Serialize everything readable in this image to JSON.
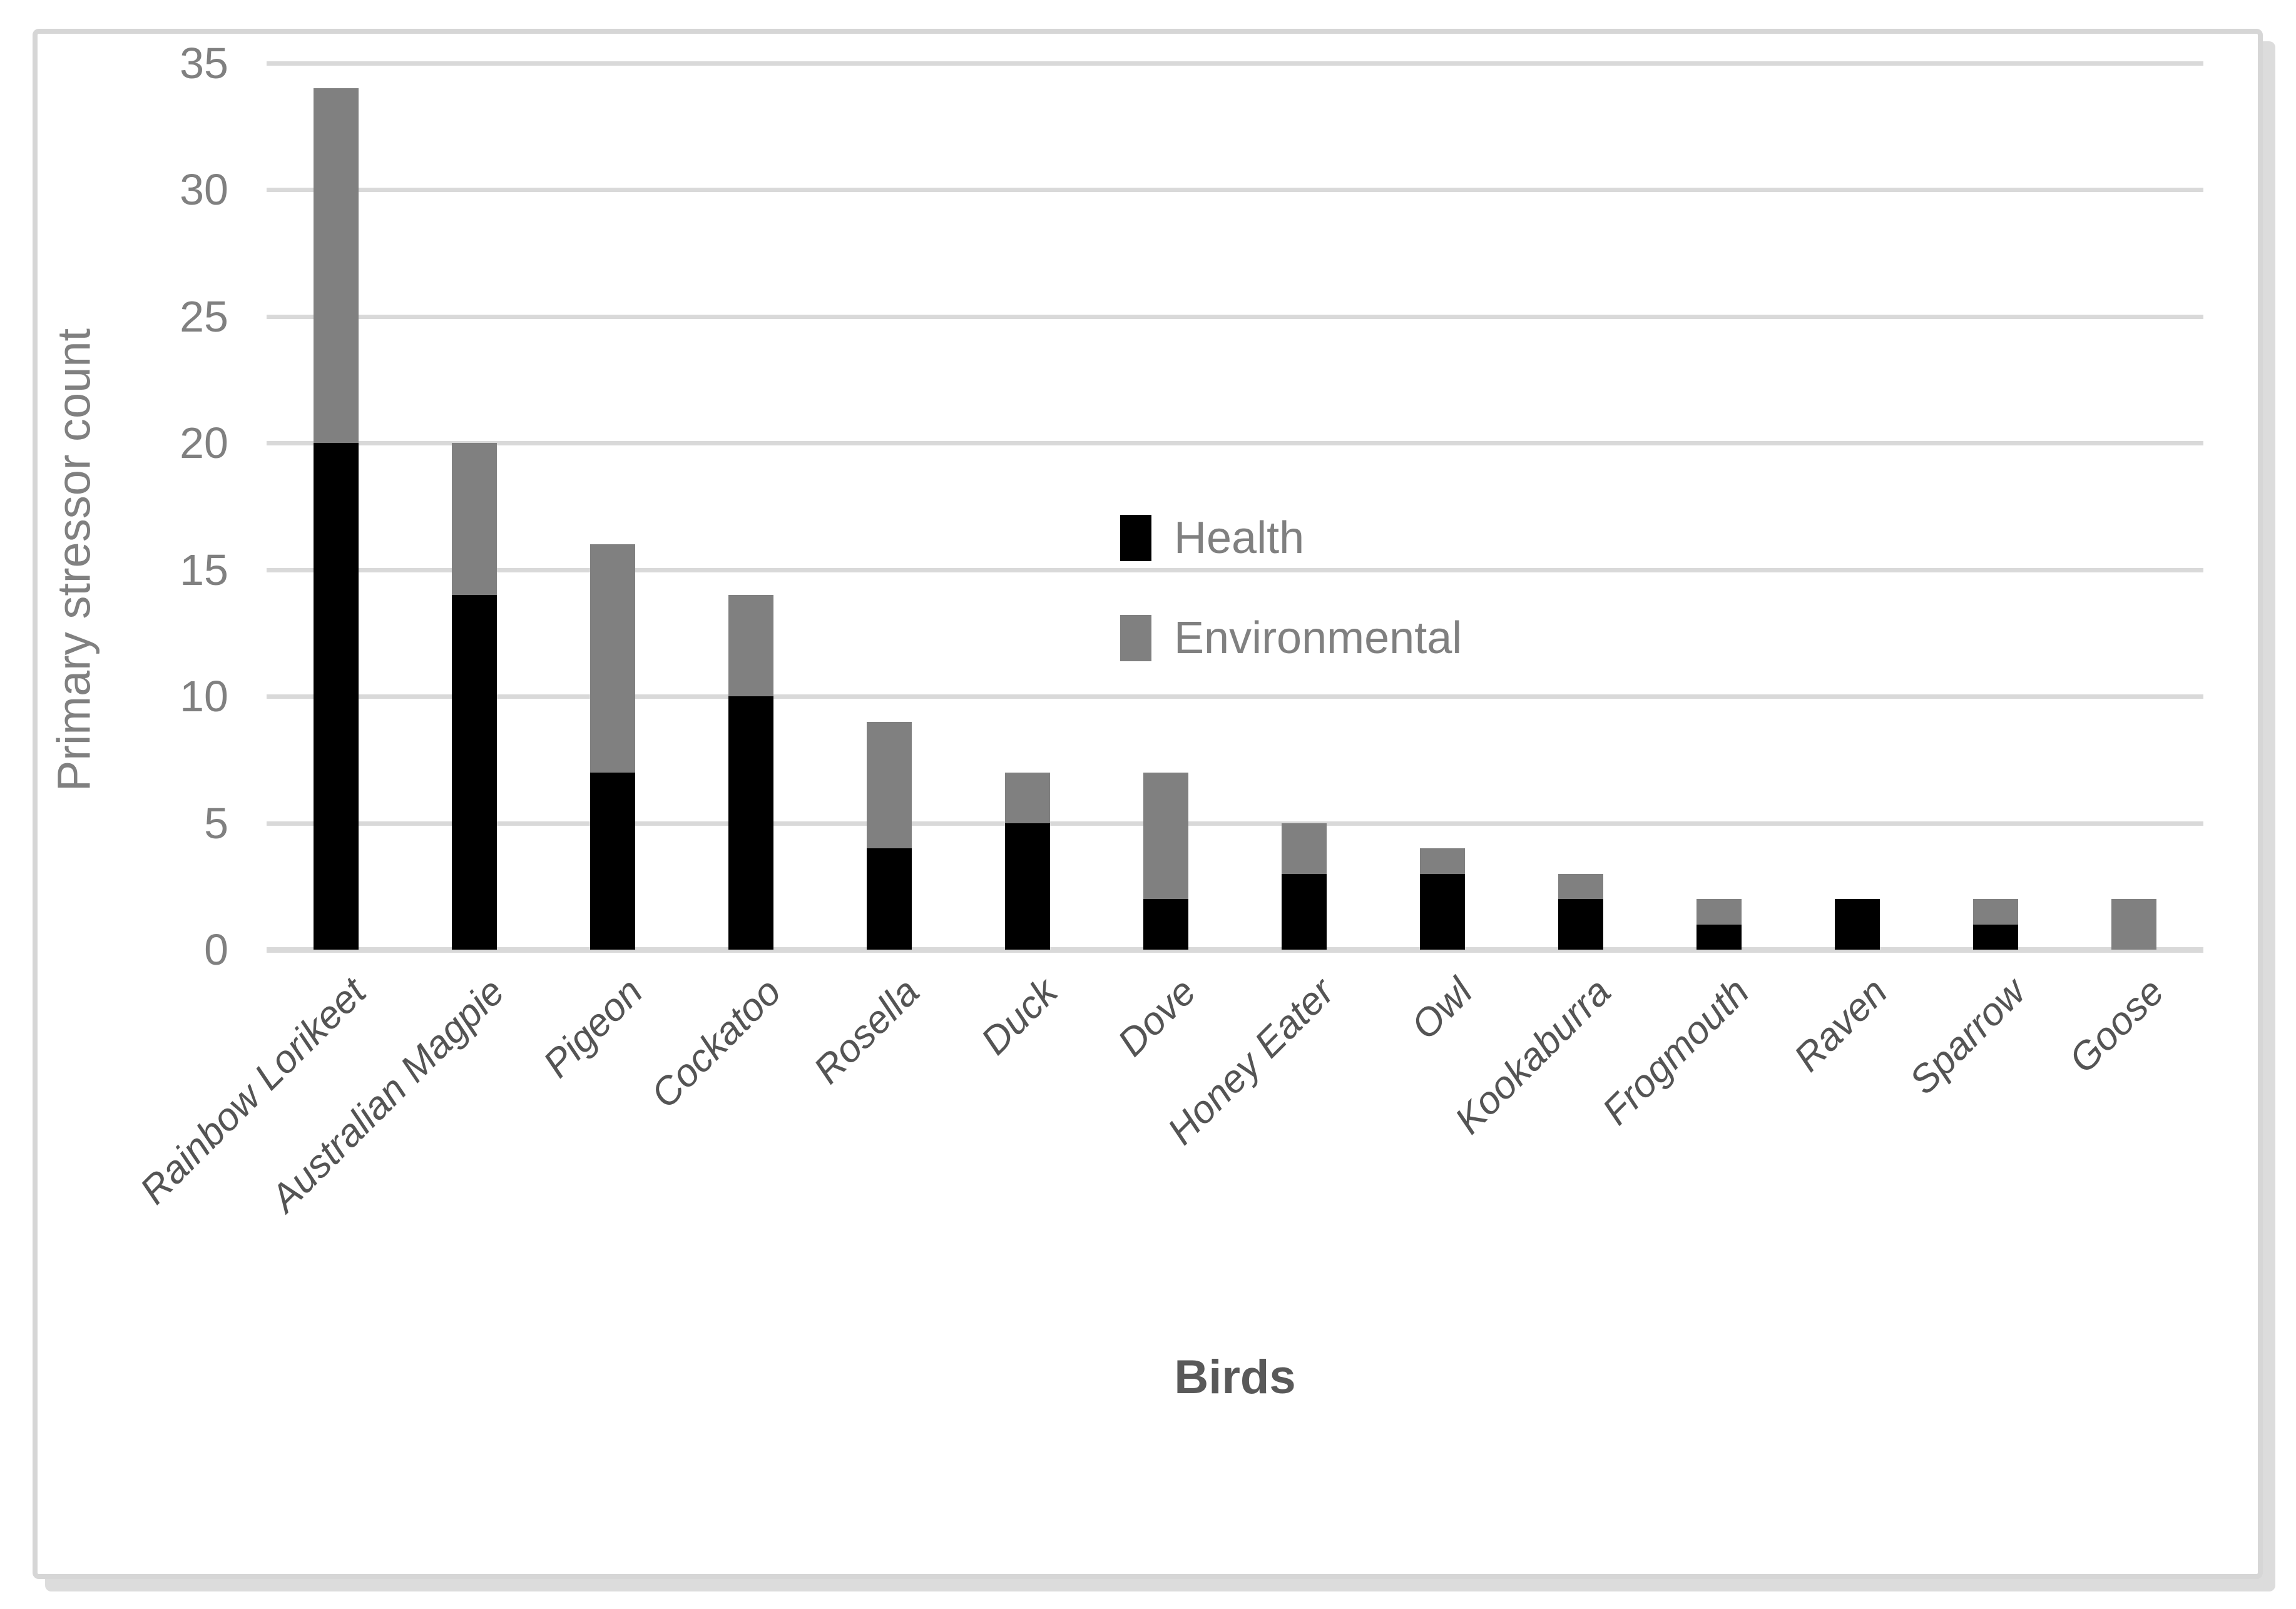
{
  "chart_data": {
    "type": "bar",
    "stacked": true,
    "categories": [
      "Rainbow Lorikeet",
      "Australian Magpie",
      "Pigeon",
      "Cockatoo",
      "Rosella",
      "Duck",
      "Dove",
      "Honey Eater",
      "Owl",
      "Kookaburra",
      "Frogmouth",
      "Raven",
      "Sparrow",
      "Goose"
    ],
    "series": [
      {
        "name": "Health",
        "color": "#000000",
        "values": [
          20,
          14,
          7,
          10,
          4,
          5,
          2,
          3,
          3,
          2,
          1,
          2,
          1,
          0
        ]
      },
      {
        "name": "Environmental",
        "color": "#808080",
        "values": [
          14,
          6,
          9,
          4,
          5,
          2,
          5,
          2,
          1,
          1,
          1,
          0,
          1,
          2
        ]
      }
    ],
    "totals": [
      34,
      20,
      16,
      14,
      9,
      7,
      7,
      5,
      4,
      3,
      2,
      2,
      2,
      2
    ],
    "xlabel": "Birds",
    "ylabel": "Primary stressor count",
    "ylim": [
      0,
      35
    ],
    "yticks": [
      0,
      5,
      10,
      15,
      20,
      25,
      30,
      35
    ],
    "grid": "horizontal",
    "legend_position": "inside-center-right",
    "legend_entries": [
      "Health",
      "Environmental"
    ]
  },
  "colors": {
    "background": "#ffffff",
    "gridline": "#d9d9d9",
    "frame_border": "#d6d6d6",
    "frame_shadow": "#dcdcdc",
    "axis_tick_text": "#808080",
    "axis_title_text": "#808080",
    "x_title_text": "#595959",
    "category_text": "#545454",
    "health_bar": "#000000",
    "environmental_bar": "#808080"
  }
}
